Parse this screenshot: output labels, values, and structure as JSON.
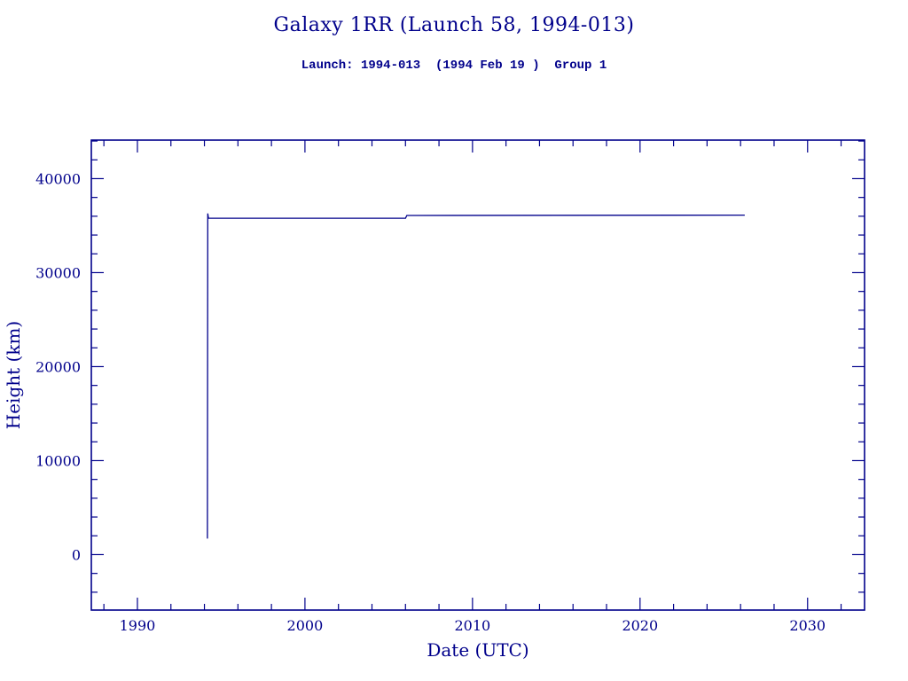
{
  "page": {
    "background": "#ffffff",
    "accent": "#00008b"
  },
  "header": {
    "title": "Galaxy 1RR (Launch 58, 1994-013)",
    "subtitle": "Launch: 1994-013  (1994 Feb 19 )  Group 1"
  },
  "chart_data": {
    "type": "line",
    "title": "Galaxy 1RR (Launch 58, 1994-013)",
    "subtitle": "Launch: 1994-013  (1994 Feb 19 )  Group 1",
    "xlabel": "Date (UTC)",
    "ylabel": "Height (km)",
    "xlim": [
      1987.25,
      2033.4
    ],
    "ylim": [
      -5900,
      44100
    ],
    "x_ticks": [
      1990,
      2000,
      2010,
      2020,
      2030
    ],
    "y_ticks": [
      0,
      10000,
      20000,
      30000,
      40000
    ],
    "x_minor_step": 2,
    "y_minor_step": 2000,
    "grid": false,
    "legend": "none",
    "line_color": "#00008b",
    "series": [
      {
        "name": "height-history",
        "points": [
          [
            1994.18,
            1700
          ],
          [
            1994.2,
            36300
          ],
          [
            1994.24,
            35786
          ],
          [
            2006.0,
            35786
          ],
          [
            2006.08,
            36080
          ],
          [
            2026.25,
            36120
          ]
        ]
      }
    ]
  }
}
